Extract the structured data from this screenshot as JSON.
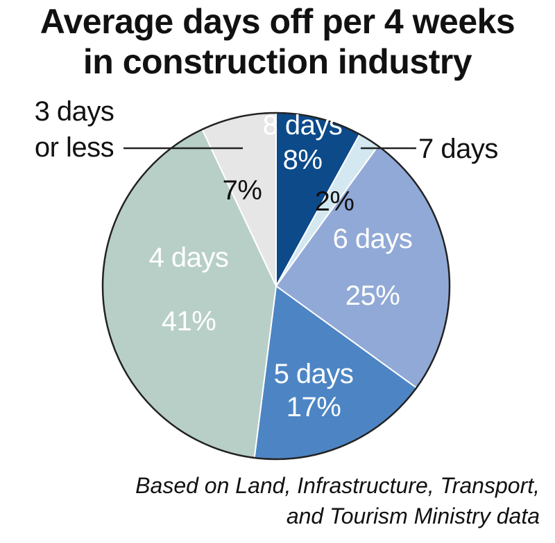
{
  "chart_data": {
    "type": "pie",
    "title_lines": [
      "Average days off per 4 weeks",
      "in construction industry"
    ],
    "start": "12 o'clock",
    "direction": "clockwise",
    "slices": [
      {
        "label": "8 days",
        "value": 8,
        "value_label": "8%",
        "color": "#0c4a8a",
        "text_color": "#ffffff",
        "label_outside": false
      },
      {
        "label": "7 days",
        "value": 2,
        "value_label": "2%",
        "color": "#d3e8f0",
        "text_color": "#111111",
        "label_outside": true
      },
      {
        "label": "6 days",
        "value": 25,
        "value_label": "25%",
        "color": "#91a9d6",
        "text_color": "#ffffff",
        "label_outside": false
      },
      {
        "label": "5 days",
        "value": 17,
        "value_label": "17%",
        "color": "#4d85c4",
        "text_color": "#ffffff",
        "label_outside": false
      },
      {
        "label": "4 days",
        "value": 41,
        "value_label": "41%",
        "color": "#b8cfc8",
        "text_color": "#ffffff",
        "label_outside": false
      },
      {
        "label": "3 days\nor less",
        "value": 7,
        "value_label": "7%",
        "color": "#e6e6e6",
        "text_color": "#111111",
        "label_outside": true
      }
    ],
    "source_lines": [
      "Based on Land, Infrastructure, Transport,",
      "and Tourism Ministry data"
    ]
  }
}
